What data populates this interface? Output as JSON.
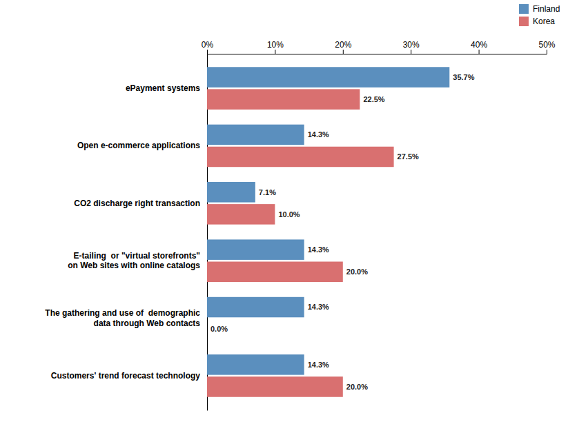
{
  "chart_data": {
    "type": "bar",
    "orientation": "horizontal",
    "categories": [
      "ePayment systems",
      "Open e-commerce applications",
      "CO2 discharge right transaction",
      "E-tailing  or \"virtual storefronts\"\non Web sites with online catalogs",
      "The gathering and use of  demographic\ndata through Web contacts",
      "Customers' trend forecast technology"
    ],
    "series": [
      {
        "name": "Finland",
        "color": "#5b8fbe",
        "values": [
          35.7,
          14.3,
          7.1,
          14.3,
          14.3,
          14.3
        ],
        "value_labels": [
          "35.7%",
          "14.3%",
          "7.1%",
          "14.3%",
          "14.3%",
          "14.3%"
        ]
      },
      {
        "name": "Korea",
        "color": "#d97070",
        "values": [
          22.5,
          27.5,
          10.0,
          20.0,
          0.0,
          20.0
        ],
        "value_labels": [
          "22.5%",
          "27.5%",
          "10.0%",
          "20.0%",
          "0.0%",
          "20.0%"
        ]
      }
    ],
    "xlim": [
      0,
      50
    ],
    "xticks": [
      {
        "value": 0,
        "label": "0%"
      },
      {
        "value": 10,
        "label": "10%"
      },
      {
        "value": 20,
        "label": "20%"
      },
      {
        "value": 30,
        "label": "30%"
      },
      {
        "value": 40,
        "label": "40%"
      },
      {
        "value": 50,
        "label": "50%"
      }
    ],
    "data_labels": true,
    "legend": "top-right"
  }
}
